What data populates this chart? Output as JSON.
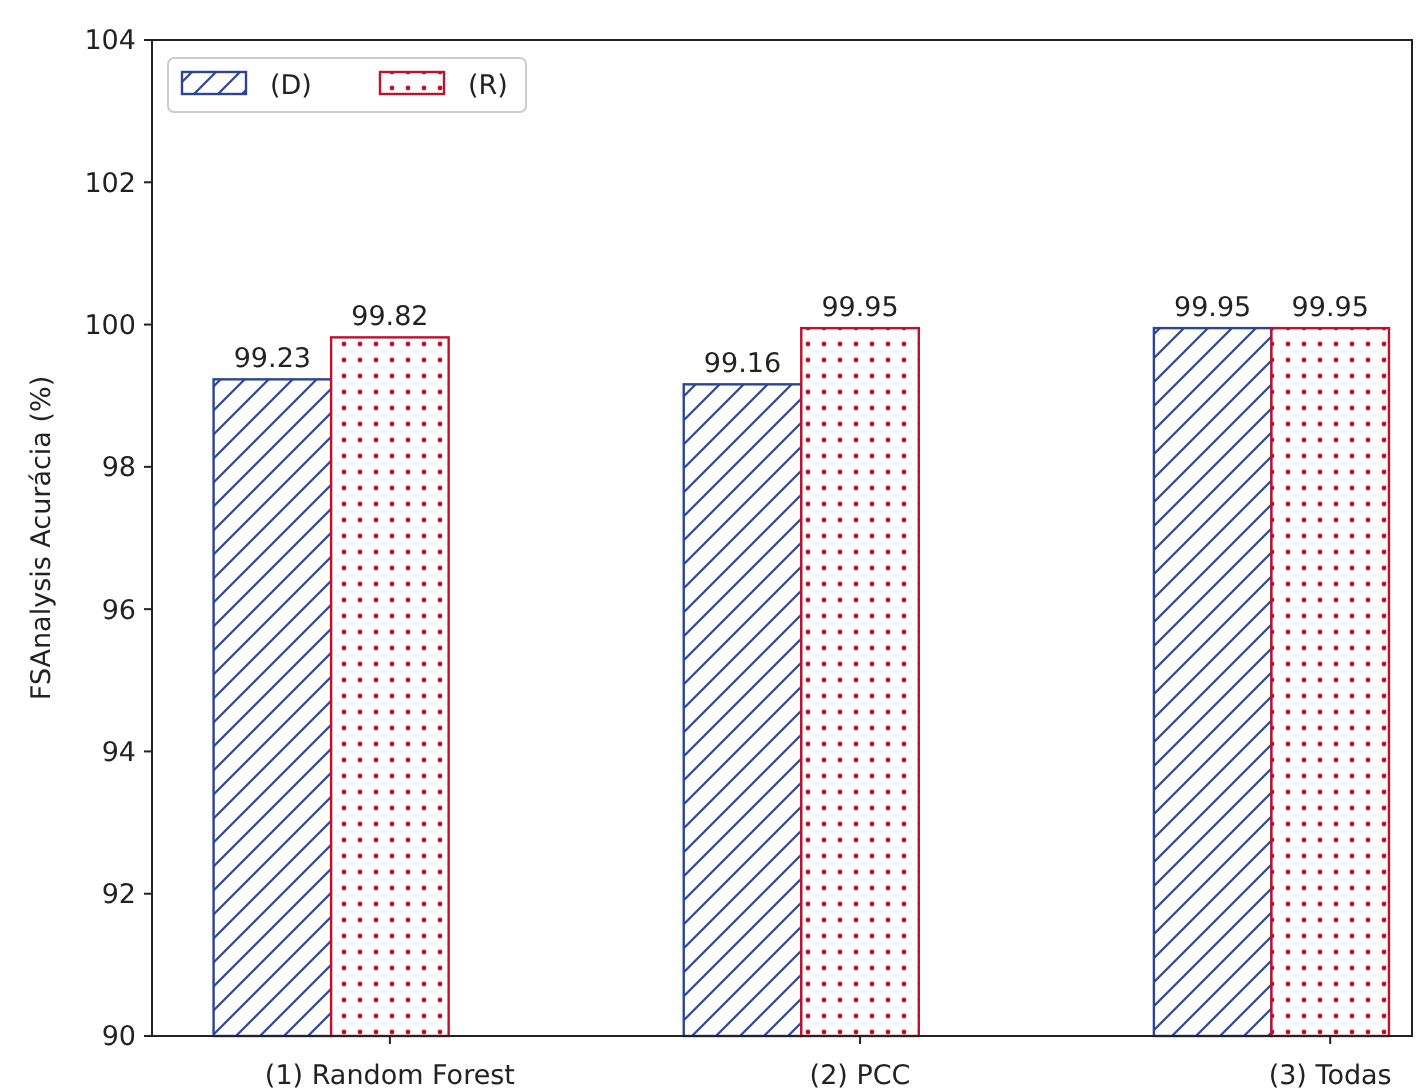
{
  "chart_data": {
    "type": "bar",
    "ylabel": "FSAnalysis Acurácia (%)",
    "categories": [
      "(1) Random Forest",
      "(2) PCC",
      "(3) Todas"
    ],
    "series": [
      {
        "name": "(D)",
        "color": "#2b4596",
        "values": [
          99.23,
          99.16,
          99.95
        ]
      },
      {
        "name": "(R)",
        "color": "#c1102c",
        "values": [
          99.82,
          99.95,
          99.95
        ]
      }
    ],
    "ylim": [
      90,
      104
    ],
    "yticks": [
      90,
      92,
      94,
      96,
      98,
      100,
      102,
      104
    ],
    "data_labels": true,
    "legend": "top left"
  }
}
